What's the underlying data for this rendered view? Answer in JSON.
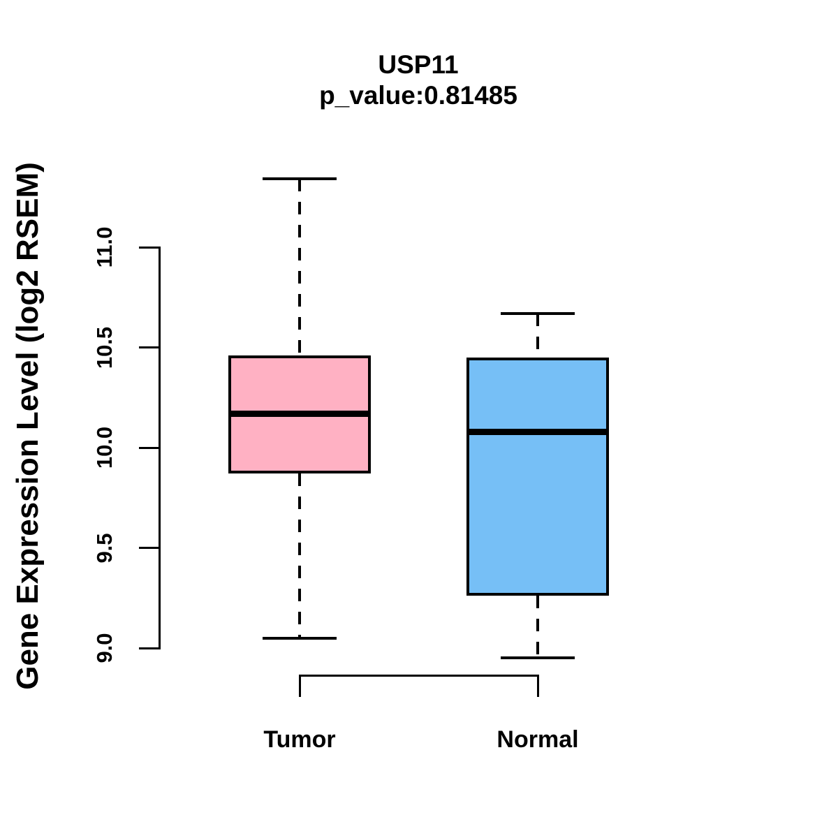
{
  "figure": {
    "background": "#FFFFFF",
    "text_color": "#000000"
  },
  "chart_data": {
    "type": "boxplot",
    "title": "USP11",
    "subtitle": "p_value:0.81485",
    "p_value": 0.81485,
    "gene": "USP11",
    "ylabel": "Gene Expression Level (log2 RSEM)",
    "xlabel": "",
    "ylim": [
      8.8,
      11.45
    ],
    "yticks": [
      9.0,
      9.5,
      10.0,
      10.5,
      11.0
    ],
    "ytick_labels": [
      "9.0",
      "9.5",
      "10.0",
      "10.5",
      "11.0"
    ],
    "grid": false,
    "legend": "none",
    "categories": [
      "Tumor",
      "Normal"
    ],
    "stroke_color": "#000000",
    "groups": [
      {
        "label": "Tumor",
        "fill_color": "#FFB1C3",
        "whisker_low": 9.05,
        "q1": 9.87,
        "median": 10.17,
        "q3": 10.46,
        "whisker_high": 11.34
      },
      {
        "label": "Normal",
        "fill_color": "#76BFF6",
        "whisker_low": 8.95,
        "q1": 9.26,
        "median": 10.08,
        "q3": 10.45,
        "whisker_high": 10.67
      }
    ]
  }
}
